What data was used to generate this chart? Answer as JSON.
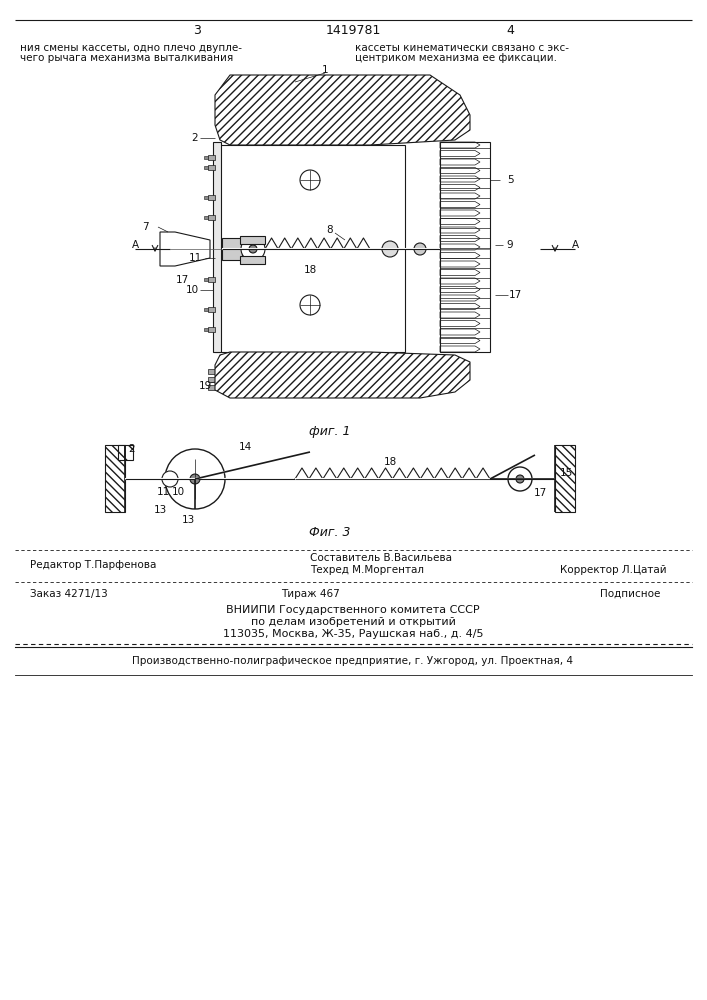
{
  "page_number_left": "3",
  "page_number_right": "4",
  "patent_number": "1419781",
  "header_text_left": "ния смены кассеты, одно плечо двупле-\nчего рычага механизма выталкивания",
  "header_text_right": "кассеты кинематически связано с экс-\nцентриком механизма ее фиксации.",
  "fig1_caption": "фиг. 1",
  "fig3_caption": "Фиг. 3",
  "footer_line1_left": "Редактор Т.Парфенова",
  "footer_line1_center1": "Составитель В.Васильева",
  "footer_line1_center2": "Техред М.Моргентал",
  "footer_line1_right": "Корректор Л.Цатай",
  "footer_line2_left": "Заказ 4271/13",
  "footer_line2_center": "Тираж 467",
  "footer_line2_right": "Подписное",
  "footer_line3": "ВНИИПИ Государственного комитета СССР",
  "footer_line4": "по делам изобретений и открытий",
  "footer_line5": "113035, Москва, Ж-35, Раушская наб., д. 4/5",
  "footer_bottom": "Производственно-полиграфическое предприятие, г. Ужгород, ул. Проектная, 4",
  "bg_color": "#ffffff",
  "line_color": "#1a1a1a",
  "hatch_color": "#333333",
  "text_color": "#111111"
}
